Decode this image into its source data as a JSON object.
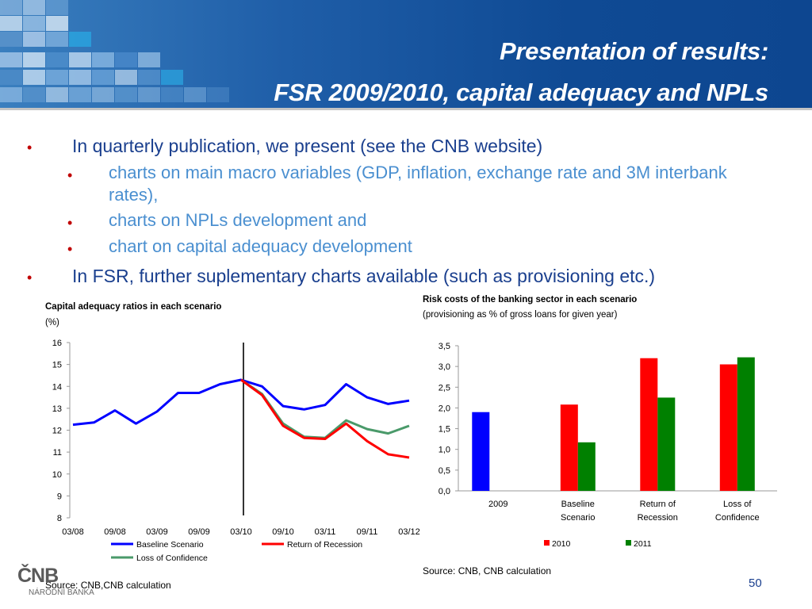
{
  "header": {
    "title_line1": "Presentation of results:",
    "title_line2": "FSR 2009/2010, capital adequacy and NPLs"
  },
  "bullets": {
    "b1": "In quarterly publication, we present (see the CNB website)",
    "s1_line1": "charts on main macro variables (GDP, inflation, exchange rate and 3M interbank",
    "s1_line2": "rates),",
    "s2": "charts on NPLs development and",
    "s3": "chart on capital adequacy development",
    "b2": "In FSR, further suplementary charts available (such as provisioning etc.)"
  },
  "colors": {
    "title": "#ffffff",
    "bullet_main": "#1a3f8e",
    "bullet_sub": "#4a8fd0",
    "bullet_marker": "#c00000",
    "baseline": "#0000ff",
    "recession": "#ff0000",
    "confidence": "#4a9a6a",
    "bar2009": "#0000ff",
    "bar2010": "#ff0000",
    "bar2011": "#008000"
  },
  "chart_data": [
    {
      "type": "line",
      "title": "Capital adequacy ratios in each scenario",
      "subtitle": "(%)",
      "x": [
        "03/08",
        "06/08",
        "09/08",
        "12/08",
        "03/09",
        "06/09",
        "09/09",
        "12/09",
        "03/10",
        "06/10",
        "09/10",
        "12/10",
        "03/11",
        "06/11",
        "09/11",
        "12/11",
        "03/12"
      ],
      "x_tick_labels": [
        "03/08",
        "09/08",
        "03/09",
        "09/09",
        "03/10",
        "09/10",
        "03/11",
        "09/11",
        "03/12"
      ],
      "y_ticks": [
        "16",
        "15",
        "14",
        "13",
        "12",
        "11",
        "10",
        "9",
        "8"
      ],
      "ylim": [
        8,
        16
      ],
      "vertical_marker_x": "03/10",
      "series": [
        {
          "name": "Baseline Scenario",
          "values": [
            12.25,
            12.35,
            12.9,
            12.3,
            12.85,
            13.7,
            13.7,
            14.1,
            14.3,
            14.0,
            13.1,
            12.95,
            13.15,
            14.1,
            13.5,
            13.2,
            13.35
          ]
        },
        {
          "name": "Return of Recession",
          "values": [
            null,
            null,
            null,
            null,
            null,
            null,
            null,
            null,
            14.3,
            13.6,
            12.2,
            11.65,
            11.6,
            12.3,
            11.5,
            10.9,
            10.75
          ]
        },
        {
          "name": "Loss of Confidence",
          "values": [
            null,
            null,
            null,
            null,
            null,
            null,
            null,
            null,
            14.3,
            13.65,
            12.3,
            11.7,
            11.65,
            12.45,
            12.05,
            11.85,
            12.2
          ]
        }
      ],
      "source": "Source: CNB,CNB calculation"
    },
    {
      "type": "bar",
      "title": "Risk costs of the banking sector in each scenario",
      "subtitle": "(provisioning as % of gross loans for given year)",
      "categories": [
        {
          "line1": "2009",
          "line2": ""
        },
        {
          "line1": "Baseline",
          "line2": "Scenario"
        },
        {
          "line1": "Return of",
          "line2": "Recession"
        },
        {
          "line1": "Loss of",
          "line2": "Confidence"
        }
      ],
      "y_ticks": [
        "3,5",
        "3,0",
        "2,5",
        "2,0",
        "1,5",
        "1,0",
        "0,5",
        "0,0"
      ],
      "ylim": [
        0,
        3.5
      ],
      "series": [
        {
          "name": "2009",
          "values": [
            1.9,
            null,
            null,
            null
          ]
        },
        {
          "name": "2010",
          "values": [
            null,
            2.08,
            3.2,
            3.05
          ]
        },
        {
          "name": "2011",
          "values": [
            null,
            1.17,
            2.25,
            3.22
          ]
        }
      ],
      "legend": [
        "2010",
        "2011"
      ],
      "source": "Source: CNB, CNB calculation"
    }
  ],
  "footer": {
    "page": "50",
    "logo_main": "ČNB",
    "logo_sub": "NÁRODNÍ BANKA"
  }
}
